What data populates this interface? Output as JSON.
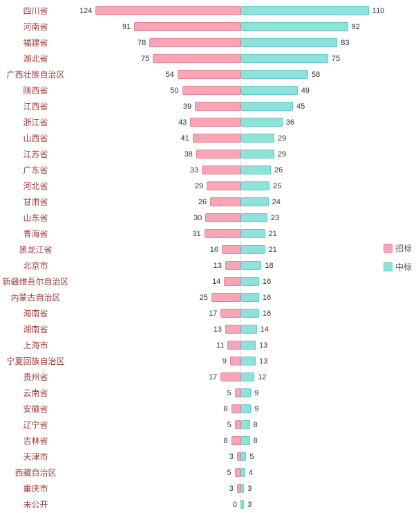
{
  "chart_data": {
    "type": "bar",
    "orientation": "bilateral-horizontal",
    "title": "",
    "xlabel": "",
    "ylabel": "",
    "grid": false,
    "legend_position": "right-middle",
    "max_value": 124,
    "categories": [
      "四川省",
      "河南省",
      "福建省",
      "湖北省",
      "广西壮族自治区",
      "陕西省",
      "江西省",
      "浙江省",
      "山西省",
      "江苏省",
      "广东省",
      "河北省",
      "甘肃省",
      "山东省",
      "青海省",
      "黑龙江省",
      "北京市",
      "新疆维吾尔自治区",
      "内蒙古自治区",
      "海南省",
      "湖南省",
      "上海市",
      "宁夏回族自治区",
      "贵州省",
      "云南省",
      "安徽省",
      "辽宁省",
      "吉林省",
      "天津市",
      "西藏自治区",
      "重庆市",
      "未公开"
    ],
    "series": [
      {
        "name": "招标",
        "side": "left",
        "color": "#f6a6b5",
        "border_color": "#ee8098",
        "values": [
          124,
          91,
          78,
          75,
          54,
          50,
          39,
          43,
          41,
          38,
          33,
          29,
          26,
          30,
          31,
          16,
          13,
          14,
          25,
          17,
          13,
          11,
          9,
          17,
          5,
          8,
          5,
          8,
          3,
          5,
          3,
          0
        ]
      },
      {
        "name": "中标",
        "side": "right",
        "color": "#8fe1d9",
        "border_color": "#5fccc2",
        "values": [
          110,
          92,
          83,
          75,
          58,
          49,
          45,
          36,
          29,
          29,
          26,
          25,
          24,
          23,
          21,
          21,
          18,
          16,
          16,
          16,
          14,
          13,
          13,
          12,
          9,
          9,
          8,
          8,
          5,
          4,
          3,
          3
        ]
      }
    ],
    "category_label_color": "#9c3a3a",
    "value_label_color": "#333333"
  }
}
